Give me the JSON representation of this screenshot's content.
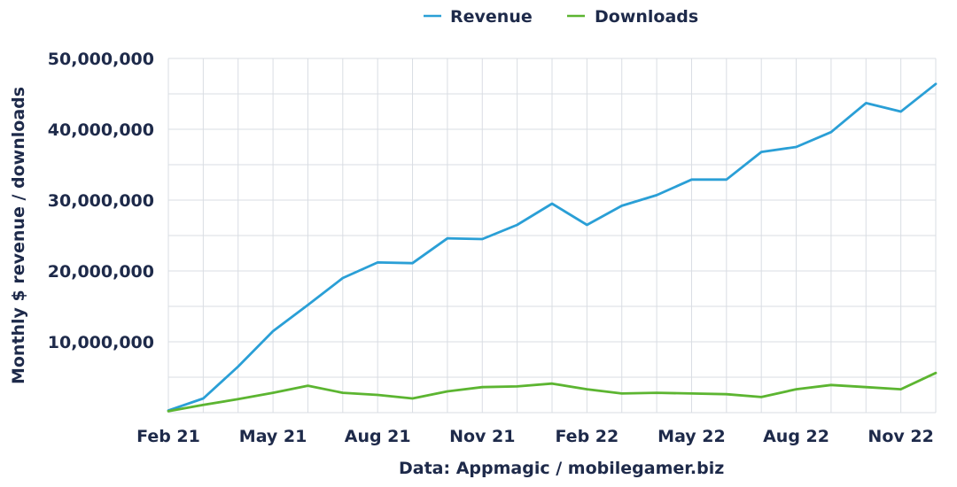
{
  "chart_data": {
    "type": "line",
    "title": "",
    "xlabel": "",
    "ylabel": "Monthly $ revenue / downloads",
    "source_note": "Data: Appmagic / mobilegamer.biz",
    "ylim": [
      0,
      50000000
    ],
    "yticks": [
      {
        "value": 10000000,
        "label": "10,000,000"
      },
      {
        "value": 20000000,
        "label": "20,000,000"
      },
      {
        "value": 30000000,
        "label": "30,000,000"
      },
      {
        "value": 40000000,
        "label": "40,000,000"
      },
      {
        "value": 50000000,
        "label": "50,000,000"
      }
    ],
    "x": [
      "Feb 21",
      "Mar 21",
      "Apr 21",
      "May 21",
      "Jun 21",
      "Jul 21",
      "Aug 21",
      "Sep 21",
      "Oct 21",
      "Nov 21",
      "Dec 21",
      "Jan 22",
      "Feb 22",
      "Mar 22",
      "Apr 22",
      "May 22",
      "Jun 22",
      "Jul 22",
      "Aug 22",
      "Sep 22",
      "Oct 22",
      "Nov 22",
      "Dec 22"
    ],
    "xtick_labels": [
      "Feb 21",
      "May 21",
      "Aug 21",
      "Nov 21",
      "Feb 22",
      "May 22",
      "Aug 22",
      "Nov 22"
    ],
    "grid": true,
    "legend_position": "top-center",
    "series": [
      {
        "name": "Revenue",
        "color": "#2a9fd6",
        "values": [
          300000,
          2000000,
          6500000,
          11500000,
          15200000,
          19000000,
          21200000,
          21100000,
          24600000,
          24500000,
          26500000,
          29500000,
          26500000,
          29200000,
          30700000,
          32900000,
          32900000,
          36800000,
          37500000,
          39600000,
          43700000,
          42500000,
          46400000
        ]
      },
      {
        "name": "Downloads",
        "color": "#5cb531",
        "values": [
          200000,
          1100000,
          1900000,
          2800000,
          3800000,
          2800000,
          2500000,
          2000000,
          3000000,
          3600000,
          3700000,
          4100000,
          3300000,
          2700000,
          2800000,
          2700000,
          2600000,
          2200000,
          3300000,
          3900000,
          3600000,
          3300000,
          5600000
        ]
      }
    ]
  }
}
